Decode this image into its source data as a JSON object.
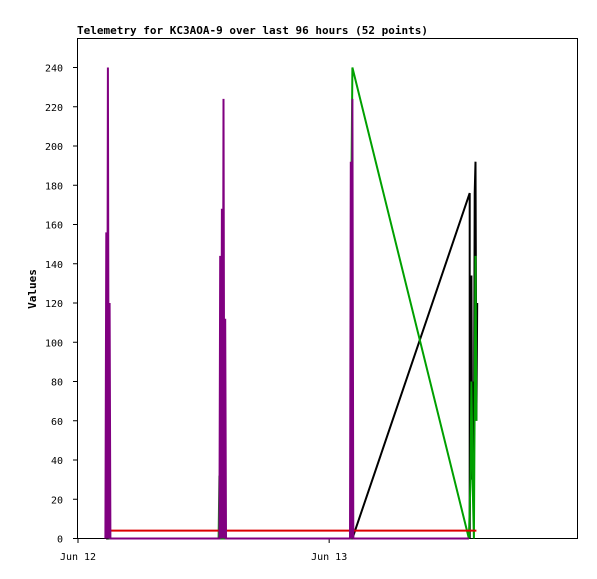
{
  "chart_data": {
    "type": "line",
    "title": "Telemetry for KC3AOA-9 over last 96 hours (52 points)",
    "ylabel": "Values",
    "xlabel": "",
    "ylim": [
      0,
      250
    ],
    "xlim": [
      0,
      30
    ],
    "y_ticks": [
      0,
      20,
      40,
      60,
      80,
      100,
      120,
      140,
      160,
      180,
      200,
      220,
      240
    ],
    "x_ticks": [
      {
        "x": 0,
        "label": "Jun 12"
      },
      {
        "x": 15.1,
        "label": "Jun 13"
      }
    ],
    "grid": false,
    "legend": "none",
    "x_unit": "hours since start of axis",
    "series": [
      {
        "color": "#000000",
        "points": [
          [
            1.7,
            0
          ],
          [
            1.7,
            52
          ],
          [
            1.75,
            0
          ],
          [
            8.6,
            0
          ],
          [
            8.65,
            56
          ],
          [
            8.7,
            0
          ],
          [
            16.5,
            0
          ],
          [
            23.55,
            176
          ],
          [
            23.55,
            0
          ],
          [
            23.65,
            134
          ],
          [
            23.7,
            30
          ],
          [
            23.75,
            80
          ],
          [
            23.8,
            28
          ],
          [
            23.85,
            176
          ],
          [
            23.9,
            192
          ],
          [
            23.95,
            60
          ],
          [
            24.0,
            120
          ]
        ]
      },
      {
        "color": "#00a000",
        "points": [
          [
            1.75,
            0
          ],
          [
            1.85,
            80
          ],
          [
            1.9,
            0
          ],
          [
            8.45,
            0
          ],
          [
            8.5,
            32
          ],
          [
            8.55,
            0
          ],
          [
            16.4,
            0
          ],
          [
            16.45,
            192
          ],
          [
            16.5,
            240
          ],
          [
            23.5,
            0
          ],
          [
            23.6,
            30
          ],
          [
            23.65,
            80
          ],
          [
            23.75,
            20
          ],
          [
            23.8,
            0
          ],
          [
            23.9,
            144
          ],
          [
            23.95,
            60
          ]
        ]
      },
      {
        "color": "#dd0000",
        "points": [
          [
            1.7,
            4
          ],
          [
            23.95,
            4
          ]
        ]
      },
      {
        "color": "#800080",
        "points": [
          [
            1.65,
            0
          ],
          [
            1.7,
            156
          ],
          [
            1.75,
            0
          ],
          [
            1.8,
            240
          ],
          [
            1.85,
            0
          ],
          [
            1.9,
            120
          ],
          [
            1.95,
            0
          ],
          [
            8.5,
            0
          ],
          [
            8.55,
            144
          ],
          [
            8.6,
            0
          ],
          [
            8.65,
            168
          ],
          [
            8.7,
            0
          ],
          [
            8.75,
            224
          ],
          [
            8.8,
            0
          ],
          [
            8.85,
            112
          ],
          [
            8.9,
            0
          ],
          [
            16.35,
            0
          ],
          [
            16.4,
            192
          ],
          [
            16.45,
            0
          ],
          [
            16.5,
            224
          ],
          [
            16.55,
            0
          ],
          [
            23.5,
            0
          ]
        ]
      }
    ]
  }
}
